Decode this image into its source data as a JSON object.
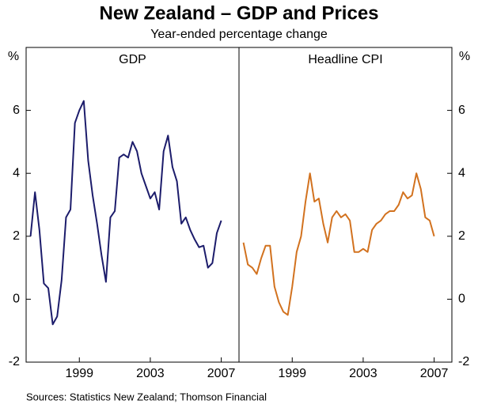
{
  "title": "New Zealand – GDP and Prices",
  "subtitle": "Year-ended percentage change",
  "source": "Sources: Statistics New Zealand; Thomson Financial",
  "chart_data": [
    {
      "type": "line",
      "title": "GDP",
      "y_label": "%",
      "y_axis_side": "left",
      "x": [
        1996.75,
        1997,
        1997.25,
        1997.5,
        1997.75,
        1998,
        1998.25,
        1998.5,
        1998.75,
        1999,
        1999.25,
        1999.5,
        1999.75,
        2000,
        2000.25,
        2000.5,
        2000.75,
        2001,
        2001.25,
        2001.5,
        2001.75,
        2002,
        2002.25,
        2002.5,
        2002.75,
        2003,
        2003.25,
        2003.5,
        2003.75,
        2004,
        2004.25,
        2004.5,
        2004.75,
        2005,
        2005.25,
        2005.5,
        2005.75,
        2006,
        2006.25,
        2006.5,
        2006.75,
        2007,
        2007.25,
        2007.5
      ],
      "series": [
        {
          "name": "GDP",
          "color": "#1c1c6b",
          "values": [
            2.0,
            3.4,
            2.2,
            0.5,
            0.35,
            -0.8,
            -0.55,
            0.6,
            2.6,
            2.85,
            5.6,
            6.0,
            6.3,
            4.4,
            3.3,
            2.4,
            1.4,
            0.55,
            2.6,
            2.8,
            4.5,
            4.6,
            4.5,
            5.0,
            4.7,
            4.0,
            3.6,
            3.2,
            3.4,
            2.85,
            4.7,
            5.2,
            4.2,
            3.75,
            2.4,
            2.6,
            2.2,
            1.9,
            1.65,
            1.7,
            1.0,
            1.15,
            2.1,
            2.5
          ]
        }
      ],
      "xlim": [
        1996.5,
        2008.5
      ],
      "xticks": [
        {
          "value": 1999.5,
          "label": "1999"
        },
        {
          "value": 2003.5,
          "label": "2003"
        },
        {
          "value": 2007.5,
          "label": "2007"
        }
      ],
      "ylim": [
        -2,
        8
      ],
      "yticks": [
        -2,
        0,
        2,
        4,
        6
      ]
    },
    {
      "type": "line",
      "title": "Headline CPI",
      "y_label": "%",
      "y_axis_side": "right",
      "x": [
        1996.75,
        1997,
        1997.25,
        1997.5,
        1997.75,
        1998,
        1998.25,
        1998.5,
        1998.75,
        1999,
        1999.25,
        1999.5,
        1999.75,
        2000,
        2000.25,
        2000.5,
        2000.75,
        2001,
        2001.25,
        2001.5,
        2001.75,
        2002,
        2002.25,
        2002.5,
        2002.75,
        2003,
        2003.25,
        2003.5,
        2003.75,
        2004,
        2004.25,
        2004.5,
        2004.75,
        2005,
        2005.25,
        2005.5,
        2005.75,
        2006,
        2006.25,
        2006.5,
        2006.75,
        2007,
        2007.25,
        2007.5
      ],
      "series": [
        {
          "name": "Headline CPI",
          "color": "#d2721f",
          "values": [
            1.8,
            1.1,
            1.0,
            0.8,
            1.3,
            1.7,
            1.7,
            0.4,
            -0.1,
            -0.4,
            -0.5,
            0.4,
            1.5,
            2.0,
            3.1,
            4.0,
            3.1,
            3.2,
            2.4,
            1.8,
            2.6,
            2.8,
            2.6,
            2.7,
            2.5,
            1.5,
            1.5,
            1.6,
            1.5,
            2.2,
            2.4,
            2.5,
            2.7,
            2.8,
            2.8,
            3.0,
            3.4,
            3.2,
            3.3,
            4.0,
            3.5,
            2.6,
            2.5,
            2.0
          ]
        }
      ],
      "xlim": [
        1996.5,
        2008.5
      ],
      "xticks": [
        {
          "value": 1999.5,
          "label": "1999"
        },
        {
          "value": 2003.5,
          "label": "2003"
        },
        {
          "value": 2007.5,
          "label": "2007"
        }
      ],
      "ylim": [
        -2,
        8
      ],
      "yticks": [
        -2,
        0,
        2,
        4,
        6
      ]
    }
  ]
}
